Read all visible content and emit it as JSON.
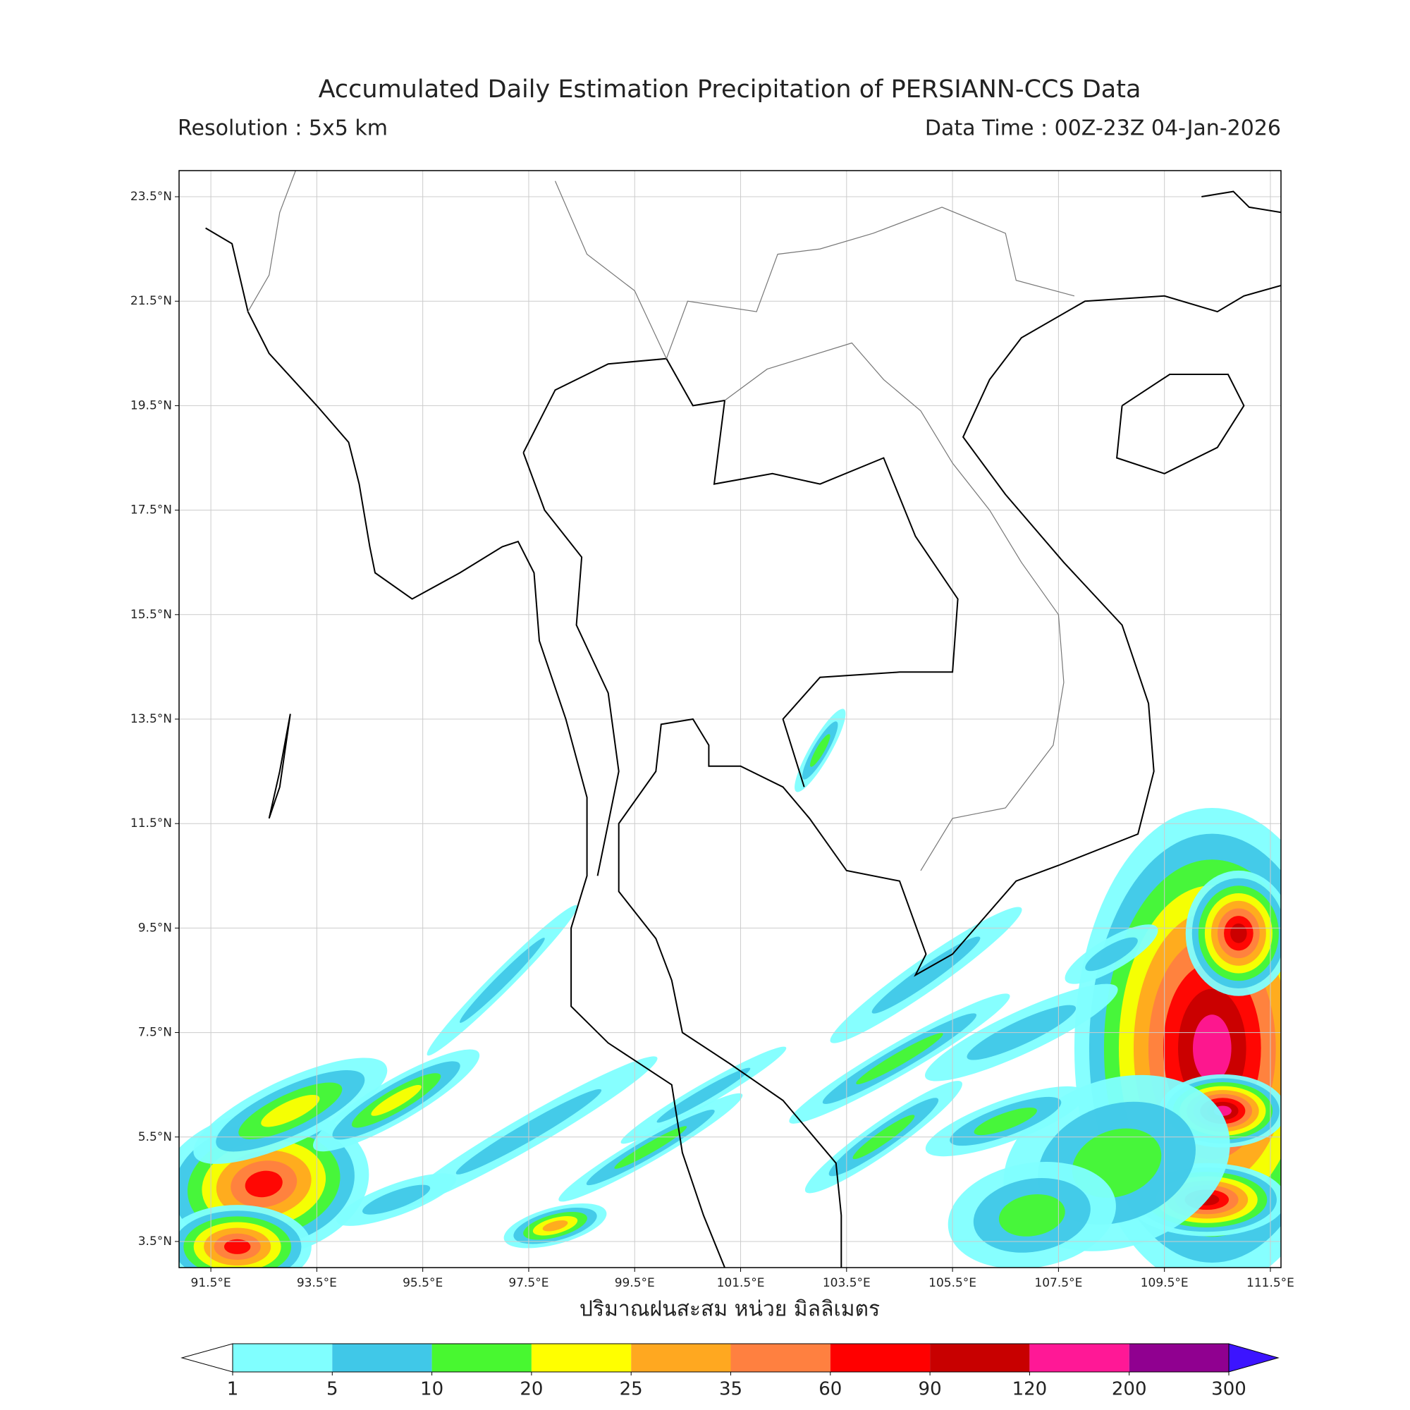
{
  "map": {
    "title": "Accumulated Daily Estimation Precipitation of PERSIANN-CCS Data",
    "resolution": "Resolution : 5x5 km",
    "data_time": "Data Time : 00Z-23Z 04-Jan-2026",
    "xlabel": "ปริมาณฝนสะสม หน่วย มิลลิเมตร",
    "xlim": [
      90.9,
      111.7
    ],
    "ylim": [
      3.0,
      24.0
    ],
    "xticks": [
      {
        "value": 91.5,
        "label": "91.5°E"
      },
      {
        "value": 93.5,
        "label": "93.5°E"
      },
      {
        "value": 95.5,
        "label": "95.5°E"
      },
      {
        "value": 97.5,
        "label": "97.5°E"
      },
      {
        "value": 99.5,
        "label": "99.5°E"
      },
      {
        "value": 101.5,
        "label": "101.5°E"
      },
      {
        "value": 103.5,
        "label": "103.5°E"
      },
      {
        "value": 105.5,
        "label": "105.5°E"
      },
      {
        "value": 107.5,
        "label": "107.5°E"
      },
      {
        "value": 109.5,
        "label": "109.5°E"
      },
      {
        "value": 111.5,
        "label": "111.5°E"
      }
    ],
    "yticks": [
      {
        "value": 23.5,
        "label": "23.5°N"
      },
      {
        "value": 21.5,
        "label": "21.5°N"
      },
      {
        "value": 19.5,
        "label": "19.5°N"
      },
      {
        "value": 17.5,
        "label": "17.5°N"
      },
      {
        "value": 15.5,
        "label": "15.5°N"
      },
      {
        "value": 13.5,
        "label": "13.5°N"
      },
      {
        "value": 11.5,
        "label": "11.5°N"
      },
      {
        "value": 9.5,
        "label": "9.5°N"
      },
      {
        "value": 7.5,
        "label": "7.5°N"
      },
      {
        "value": 5.5,
        "label": "5.5°N"
      },
      {
        "value": 3.5,
        "label": "3.5°N"
      }
    ],
    "grid": true,
    "colorbar": {
      "bounds": [
        1,
        5,
        10,
        20,
        25,
        35,
        60,
        90,
        120,
        200,
        300
      ],
      "colors": [
        "#80ffff",
        "#40c8e8",
        "#48f830",
        "#ffff00",
        "#ffa820",
        "#ff8040",
        "#ff0000",
        "#c80000",
        "#ff1896",
        "#900090"
      ],
      "under_color": "#ffffff",
      "over_color": "#3c14ff"
    }
  }
}
